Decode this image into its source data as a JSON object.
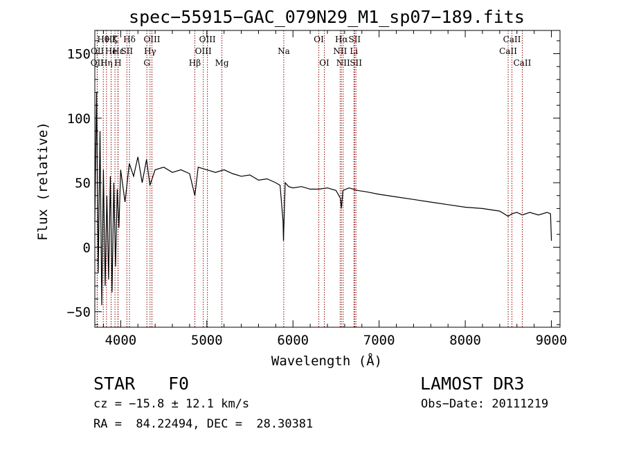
{
  "chart_data": {
    "type": "line",
    "title": "spec−55915−GAC_079N29_M1_sp07−189.fits",
    "xlabel": "Wavelength (Å)",
    "ylabel": "Flux (relative)",
    "xlim": [
      3700,
      9100
    ],
    "ylim": [
      -62,
      168
    ],
    "x_ticks": [
      4000,
      5000,
      6000,
      7000,
      8000,
      9000
    ],
    "x_tick_labels": [
      "4000",
      "5000",
      "6000",
      "7000",
      "8000",
      "9000"
    ],
    "y_ticks": [
      -50,
      0,
      50,
      100,
      150
    ],
    "y_tick_labels": [
      "−50",
      "0",
      "50",
      "100",
      "150"
    ],
    "series": [
      {
        "name": "flux",
        "color": "#000000",
        "x": [
          3700,
          3720,
          3740,
          3760,
          3780,
          3800,
          3820,
          3840,
          3860,
          3880,
          3900,
          3920,
          3940,
          3960,
          3980,
          4000,
          4050,
          4100,
          4150,
          4200,
          4250,
          4300,
          4340,
          4400,
          4500,
          4600,
          4700,
          4800,
          4861,
          4900,
          5000,
          5100,
          5200,
          5300,
          5400,
          5500,
          5600,
          5700,
          5800,
          5850,
          5885,
          5890,
          5896,
          5910,
          5950,
          6000,
          6100,
          6200,
          6300,
          6400,
          6500,
          6550,
          6563,
          6580,
          6650,
          6750,
          6850,
          7000,
          7200,
          7400,
          7600,
          7800,
          8000,
          8200,
          8400,
          8498,
          8542,
          8600,
          8662,
          8750,
          8850,
          8950,
          8990,
          9000
        ],
        "y": [
          20,
          120,
          -20,
          90,
          -45,
          60,
          -30,
          40,
          -25,
          55,
          -35,
          50,
          -15,
          45,
          15,
          60,
          35,
          65,
          55,
          70,
          50,
          68,
          48,
          60,
          62,
          58,
          60,
          57,
          40,
          62,
          60,
          58,
          60,
          57,
          55,
          56,
          52,
          53,
          50,
          48,
          20,
          5,
          20,
          50,
          47,
          46,
          47,
          45,
          45,
          46,
          44,
          38,
          30,
          44,
          46,
          44,
          43,
          41,
          39,
          37,
          35,
          33,
          31,
          30,
          28,
          24,
          26,
          27,
          25,
          27,
          25,
          27,
          26,
          5
        ]
      }
    ],
    "spectral_lines": [
      {
        "label": "O​II",
        "wavelength": 3727,
        "row": 3
      },
      {
        "label": "Hθ",
        "wavelength": 3798,
        "row": 1
      },
      {
        "label": "O​II",
        "wavelength": 3729,
        "row": 2
      },
      {
        "label": "Hη",
        "wavelength": 3835,
        "row": 3
      },
      {
        "label": "Hζ",
        "wavelength": 3889,
        "row": 1
      },
      {
        "label": "He",
        "wavelength": 3889,
        "row": 2
      },
      {
        "label": "K",
        "wavelength": 3934,
        "row": 1
      },
      {
        "label": "H",
        "wavelength": 3968,
        "row": 3
      },
      {
        "label": "Hε",
        "wavelength": 3970,
        "row": 2
      },
      {
        "label": "SII",
        "wavelength": 4072,
        "row": 2
      },
      {
        "label": "Hδ",
        "wavelength": 4102,
        "row": 1
      },
      {
        "label": "G",
        "wavelength": 4304,
        "row": 3
      },
      {
        "label": "OIII",
        "wavelength": 4363,
        "row": 1
      },
      {
        "label": "Hγ",
        "wavelength": 4341,
        "row": 2
      },
      {
        "label": "Hβ",
        "wavelength": 4861,
        "row": 3
      },
      {
        "label": "OIII",
        "wavelength": 4959,
        "row": 2
      },
      {
        "label": "OIII",
        "wavelength": 5007,
        "row": 1
      },
      {
        "label": "Mg",
        "wavelength": 5175,
        "row": 3
      },
      {
        "label": "Na",
        "wavelength": 5893,
        "row": 2
      },
      {
        "label": "OI",
        "wavelength": 6300,
        "row": 1
      },
      {
        "label": "OI",
        "wavelength": 6364,
        "row": 3
      },
      {
        "label": "Hα",
        "wavelength": 6563,
        "row": 1
      },
      {
        "label": "NII",
        "wavelength": 6548,
        "row": 2
      },
      {
        "label": "NII",
        "wavelength": 6583,
        "row": 3
      },
      {
        "label": "SII",
        "wavelength": 6716,
        "row": 1
      },
      {
        "label": "Li",
        "wavelength": 6708,
        "row": 2
      },
      {
        "label": "SII",
        "wavelength": 6731,
        "row": 3
      },
      {
        "label": "CaII",
        "wavelength": 8498,
        "row": 2
      },
      {
        "label": "CaII",
        "wavelength": 8542,
        "row": 1
      },
      {
        "label": "CaII",
        "wavelength": 8662,
        "row": 3
      }
    ]
  },
  "info": {
    "object_class": "STAR",
    "subclass": "F0",
    "survey": "LAMOST DR3",
    "cz": "cz = −15.8 ± 12.1 km/s",
    "obs_date": "Obs−Date: 20111219",
    "coords": "RA =  84.22494, DEC =  28.30381"
  }
}
